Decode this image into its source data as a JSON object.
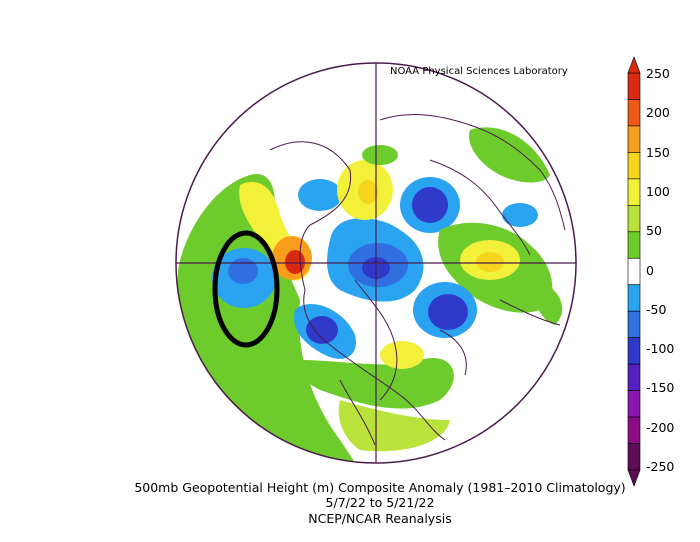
{
  "header": {
    "credit": "NOAA Physical Sciences Laboratory"
  },
  "caption": {
    "title": "500mb Geopotential Height (m) Composite Anomaly (1981–2010 Climatology)",
    "dates": "5/7/22  to 5/21/22",
    "source": "NCEP/NCAR Reanalysis"
  },
  "colorbar": {
    "ticks": [
      "250",
      "200",
      "150",
      "100",
      "50",
      "0",
      "-50",
      "-100",
      "-150",
      "-200",
      "-250"
    ],
    "colors": [
      "#d92a12",
      "#ee5a16",
      "#f99d1c",
      "#f7d51c",
      "#f3f03a",
      "#b9e23a",
      "#6dcc2b",
      "#ffffff",
      "#2aa4f0",
      "#2f6fe0",
      "#2f3acb",
      "#5420c0",
      "#8a15b0",
      "#8c0c85",
      "#5e0d58"
    ]
  },
  "annotation": {
    "label": "circled negative anomaly"
  }
}
